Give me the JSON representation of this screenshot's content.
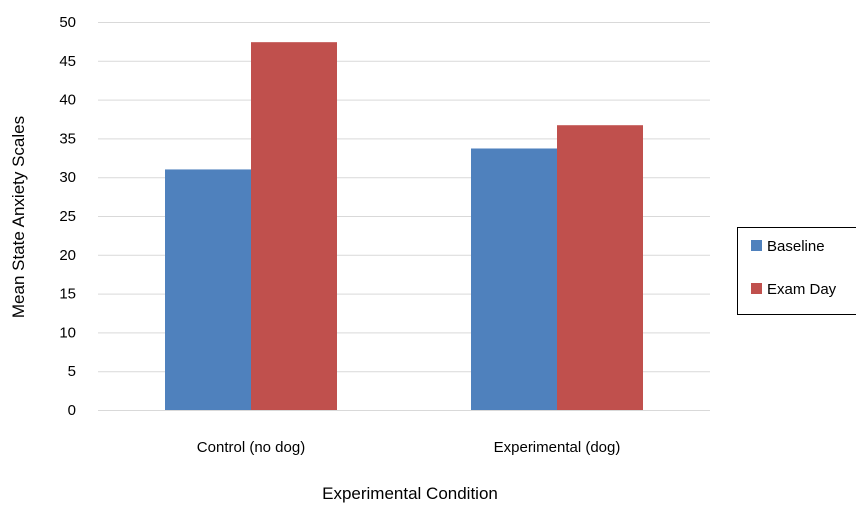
{
  "chart_data": {
    "type": "bar",
    "title": "",
    "xlabel": "Experimental Condition",
    "ylabel": "Mean State Anxiety Scales",
    "ylim": [
      0,
      50
    ],
    "yticks": [
      0,
      5,
      10,
      15,
      20,
      25,
      30,
      35,
      40,
      45,
      50
    ],
    "grid": true,
    "legend_position": "right",
    "categories": [
      "Control (no dog)",
      "Experimental (dog)"
    ],
    "series": [
      {
        "name": "Baseline",
        "color": "#4f81bd",
        "values": [
          31.0,
          33.7
        ]
      },
      {
        "name": "Exam Day",
        "color": "#c0504d",
        "values": [
          47.4,
          36.7
        ]
      }
    ]
  }
}
